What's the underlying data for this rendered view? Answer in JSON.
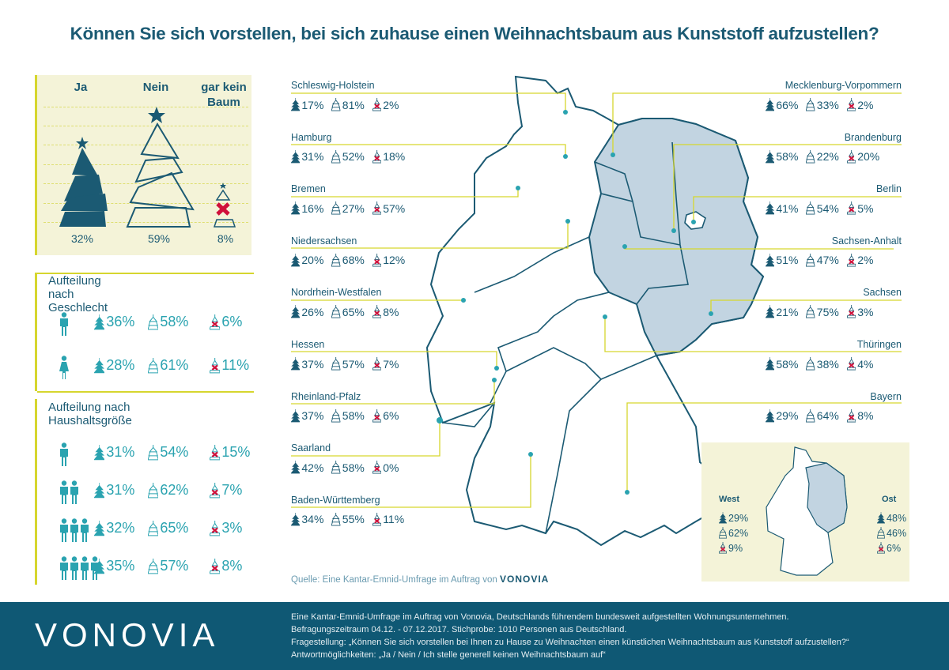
{
  "title": "Können Sie sich vorstellen, bei sich zuhause einen Weihnachtsbaum aus Kunststoff aufzustellen?",
  "colors": {
    "dark_blue": "#1b5a73",
    "teal": "#2aa3b0",
    "red": "#d0103a",
    "panel": "#f4f3d8",
    "accent_yellow": "#d6d62e",
    "east_fill": "#c2d4e1",
    "footer": "#0f5874"
  },
  "summary": {
    "ja_label": "Ja",
    "nein_label": "Nein",
    "kein_label_1": "gar kein",
    "kein_label_2": "Baum",
    "ja": "32%",
    "nein": "59%",
    "kein": "8%"
  },
  "gender": {
    "heading": "Aufteilung nach Geschlecht",
    "rows": [
      {
        "icon": "male-icon",
        "ja": "36%",
        "nein": "58%",
        "kein": "6%"
      },
      {
        "icon": "female-icon",
        "ja": "28%",
        "nein": "61%",
        "kein": "11%"
      }
    ]
  },
  "household": {
    "heading": "Aufteilung nach Haushaltsgröße",
    "rows": [
      {
        "persons": 1,
        "ja": "31%",
        "nein": "54%",
        "kein": "15%"
      },
      {
        "persons": 2,
        "ja": "31%",
        "nein": "62%",
        "kein": "7%"
      },
      {
        "persons": 3,
        "ja": "32%",
        "nein": "65%",
        "kein": "3%"
      },
      {
        "persons": 4,
        "ja": "35%",
        "nein": "57%",
        "kein": "8%"
      }
    ]
  },
  "regions_left": [
    {
      "name": "Schleswig-Holstein",
      "ja": "17%",
      "nein": "81%",
      "kein": "2%"
    },
    {
      "name": "Hamburg",
      "ja": "31%",
      "nein": "52%",
      "kein": "18%"
    },
    {
      "name": "Bremen",
      "ja": "16%",
      "nein": "27%",
      "kein": "57%"
    },
    {
      "name": "Niedersachsen",
      "ja": "20%",
      "nein": "68%",
      "kein": "12%"
    },
    {
      "name": "Nordrhein-Westfalen",
      "ja": "26%",
      "nein": "65%",
      "kein": "8%"
    },
    {
      "name": "Hessen",
      "ja": "37%",
      "nein": "57%",
      "kein": "7%"
    },
    {
      "name": "Rheinland-Pfalz",
      "ja": "37%",
      "nein": "58%",
      "kein": "6%"
    },
    {
      "name": "Saarland",
      "ja": "42%",
      "nein": "58%",
      "kein": "0%"
    },
    {
      "name": "Baden-Württemberg",
      "ja": "34%",
      "nein": "55%",
      "kein": "11%"
    }
  ],
  "regions_right": [
    {
      "name": "Mecklenburg-Vorpommern",
      "ja": "66%",
      "nein": "33%",
      "kein": "2%"
    },
    {
      "name": "Brandenburg",
      "ja": "58%",
      "nein": "22%",
      "kein": "20%"
    },
    {
      "name": "Berlin",
      "ja": "41%",
      "nein": "54%",
      "kein": "5%"
    },
    {
      "name": "Sachsen-Anhalt",
      "ja": "51%",
      "nein": "47%",
      "kein": "2%"
    },
    {
      "name": "Sachsen",
      "ja": "21%",
      "nein": "75%",
      "kein": "3%"
    },
    {
      "name": "Thüringen",
      "ja": "58%",
      "nein": "38%",
      "kein": "4%"
    },
    {
      "name": "Bayern",
      "ja": "29%",
      "nein": "64%",
      "kein": "8%"
    }
  ],
  "inset": {
    "west_label": "West",
    "ost_label": "Ost",
    "west": {
      "ja": "29%",
      "nein": "62%",
      "kein": "9%"
    },
    "ost": {
      "ja": "48%",
      "nein": "46%",
      "kein": "6%"
    }
  },
  "source": {
    "text": "Quelle: Eine Kantar-Emnid-Umfrage im Auftrag von",
    "brand": "VONOVIA"
  },
  "footer": {
    "logo": "VONOVIA",
    "lines": [
      "Eine Kantar-Emnid-Umfrage im Auftrag von Vonovia, Deutschlands führendem bundesweit aufgestellten Wohnungsunternehmen.",
      "Befragungszeitraum 04.12. - 07.12.2017. Stichprobe: 1010 Personen aus Deutschland.",
      "Fragestellung: „Können Sie sich vorstellen bei Ihnen zu Hause zu Weihnachten einen künstlichen Weihnachtsbaum aus Kunststoff aufzustellen?“",
      "Antwortmöglichkeiten: „Ja / Nein / Ich stelle generell keinen Weihnachtsbaum auf“"
    ]
  }
}
